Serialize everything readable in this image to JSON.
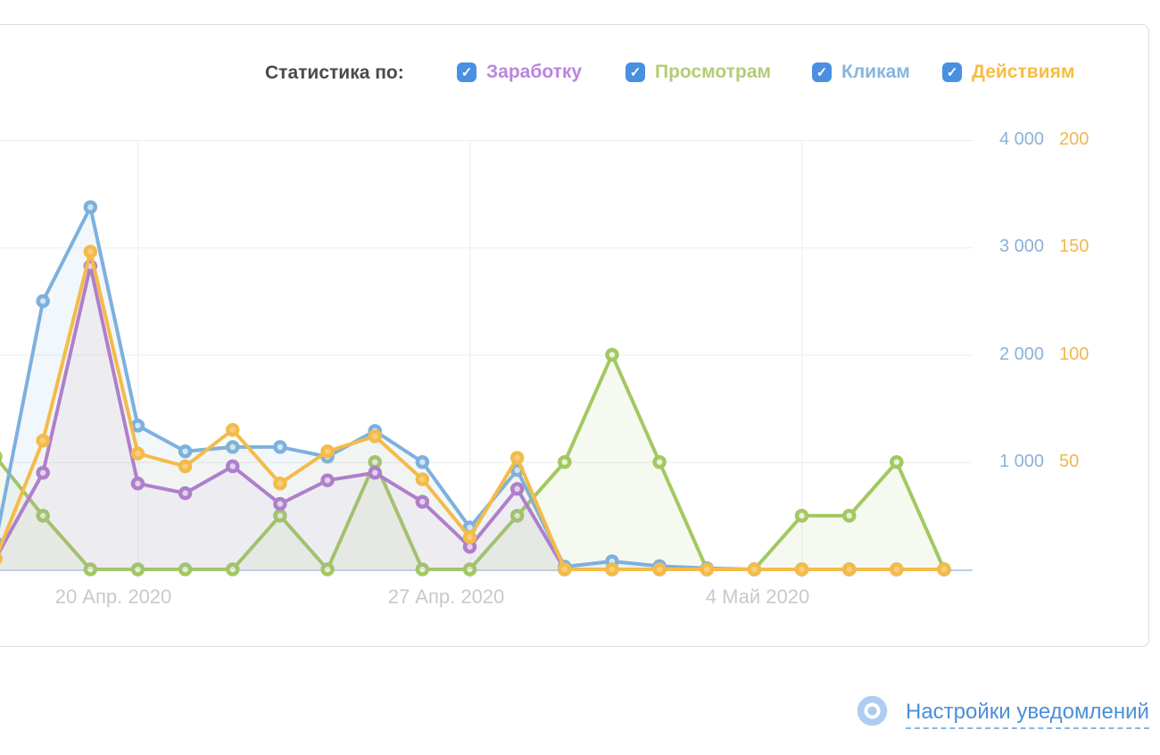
{
  "legend": {
    "title": "Статистика по:",
    "checkbox_color": "#4a90e2",
    "items": [
      {
        "label": "Заработку",
        "color": "#bb84de",
        "checked": true
      },
      {
        "label": "Просмотрам",
        "color": "#b2cd76",
        "checked": true
      },
      {
        "label": "Кликам",
        "color": "#87b6df",
        "checked": true
      },
      {
        "label": "Действиям",
        "color": "#f6bd45",
        "checked": true
      }
    ]
  },
  "footer": {
    "notifications_link": "Настройки уведомлений"
  },
  "chart_data": {
    "type": "line",
    "x_count": 21,
    "x_tick_labels": [
      "20 Апр. 2020",
      "27 Апр. 2020",
      "4 Май 2020"
    ],
    "x_tick_indices": [
      3,
      10,
      17
    ],
    "grid": true,
    "legend_position": "top",
    "left_axis": {
      "labels": [
        "4 000",
        "3 000",
        "2 000",
        "1 000"
      ],
      "values": [
        4000,
        3000,
        2000,
        1000
      ],
      "color": "#8cb2d8",
      "range": [
        0,
        4000
      ]
    },
    "right_axis": {
      "labels": [
        "200",
        "150",
        "100",
        "50"
      ],
      "values": [
        200,
        150,
        100,
        50
      ],
      "color": "#f1b74e",
      "range": [
        0,
        200
      ]
    },
    "series": [
      {
        "name": "Просмотрам",
        "axis": "left",
        "color": "#a3c861",
        "point_fill": "#eaf2da",
        "fill_alpha": 0.1,
        "values": [
          1050,
          500,
          0,
          0,
          0,
          0,
          500,
          0,
          1000,
          0,
          0,
          500,
          1000,
          2000,
          1000,
          0,
          0,
          500,
          500,
          1000,
          0
        ]
      },
      {
        "name": "Заработку",
        "axis": "left",
        "color": "#b277d1",
        "point_fill": "#e8dcf2",
        "fill_alpha": 0.05,
        "values": [
          100,
          900,
          2825,
          800,
          710,
          960,
          610,
          830,
          900,
          630,
          210,
          750,
          0,
          0,
          0,
          0,
          0,
          0,
          0,
          0,
          0
        ]
      },
      {
        "name": "Кликам",
        "axis": "left",
        "color": "#7db0dd",
        "point_fill": "#d3e5f5",
        "fill_alpha": 0.1,
        "values": [
          250,
          2500,
          3375,
          1340,
          1100,
          1140,
          1140,
          1050,
          1290,
          1000,
          390,
          925,
          25,
          75,
          30,
          10,
          0,
          0,
          0,
          0,
          0
        ]
      },
      {
        "name": "Действиям",
        "axis": "right",
        "color": "#f4bb4a",
        "point_fill": "#f8cf7d",
        "fill_alpha": 0.05,
        "values": [
          5,
          60,
          148,
          54,
          48,
          65,
          40,
          55,
          62,
          42,
          15,
          52,
          0,
          0,
          0,
          0,
          0,
          0,
          0,
          0,
          0
        ]
      }
    ]
  }
}
